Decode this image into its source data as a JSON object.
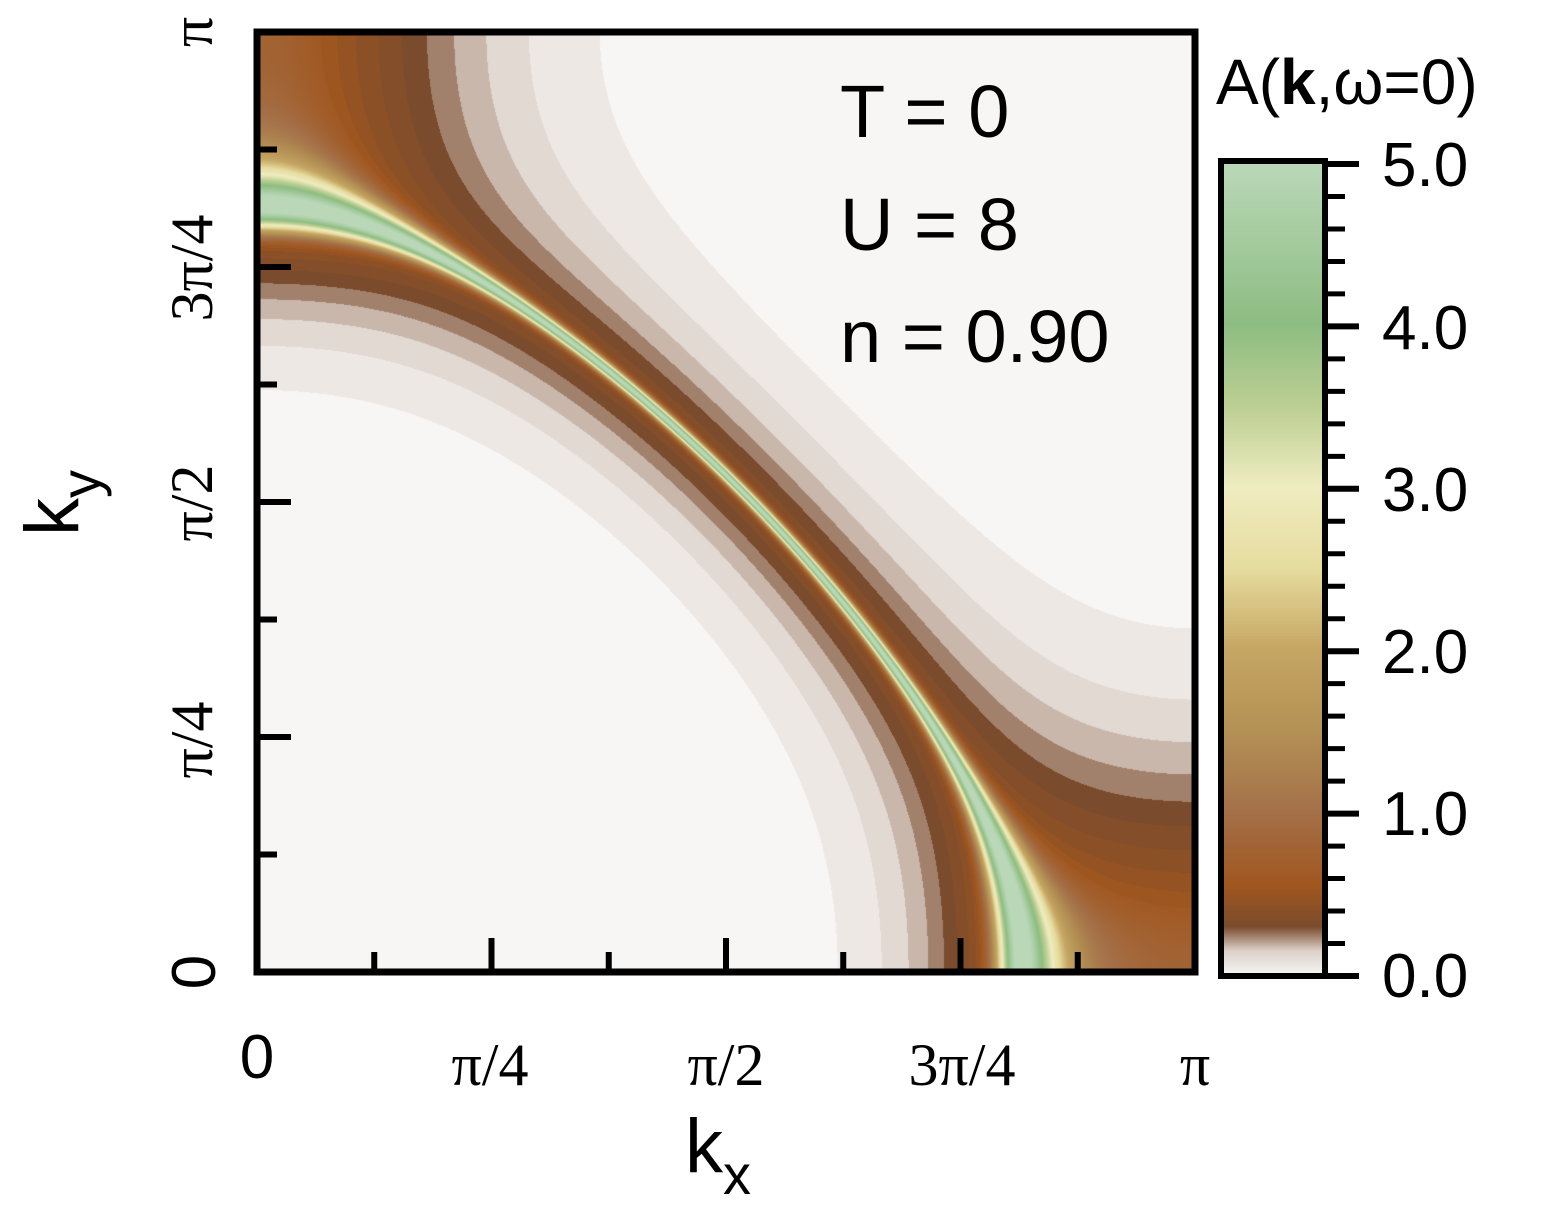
{
  "chart_data": {
    "type": "heatmap",
    "xlabel": "k",
    "xlabel_sub": "x",
    "ylabel": "k",
    "ylabel_sub": "y",
    "xlim_label": [
      "0",
      "π"
    ],
    "x_ticks": [
      "0",
      "π/4",
      "π/2",
      "3π/4",
      "π"
    ],
    "y_ticks": [
      "0",
      "π/4",
      "π/2",
      "3π/4",
      "π"
    ],
    "annotations": [
      "T = 0",
      "U = 8",
      "n = 0.90"
    ],
    "colorbar": {
      "title_prefix": "A(",
      "title_bold": "k",
      "title_suffix": ",ω=0)",
      "ticks": [
        "0.0",
        "1.0",
        "2.0",
        "3.0",
        "4.0",
        "5.0"
      ],
      "tick_values": [
        0,
        1,
        2,
        3,
        4,
        5
      ],
      "range": [
        0,
        5
      ]
    },
    "value_range": [
      0,
      5
    ],
    "colormap": [
      {
        "v": 0.0,
        "color": "#f8f6f4"
      },
      {
        "v": 0.15,
        "color": "#ddd2cb"
      },
      {
        "v": 0.3,
        "color": "#7a4b2c"
      },
      {
        "v": 0.55,
        "color": "#a0561f"
      },
      {
        "v": 1.0,
        "color": "#a47048"
      },
      {
        "v": 1.5,
        "color": "#b39155"
      },
      {
        "v": 2.0,
        "color": "#c6a663"
      },
      {
        "v": 2.5,
        "color": "#e6dc9e"
      },
      {
        "v": 3.0,
        "color": "#efecc1"
      },
      {
        "v": 3.5,
        "color": "#bccf93"
      },
      {
        "v": 4.0,
        "color": "#8dbd82"
      },
      {
        "v": 5.0,
        "color": "#bad8b8"
      }
    ]
  }
}
